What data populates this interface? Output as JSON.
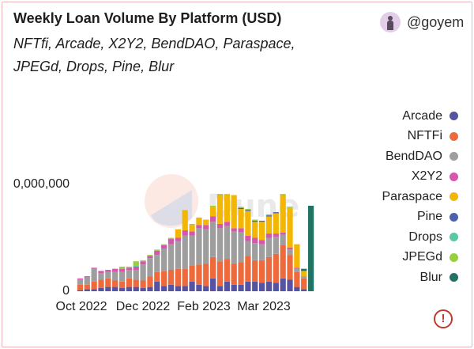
{
  "header": {
    "title": "Weekly Loan Volume By Platform (USD)",
    "subtitle": "NFTfi, Arcade, X2Y2, BendDAO, Paraspace, JPEGd, Drops, Pine, Blur",
    "author": "@goyem"
  },
  "watermark": "Dune",
  "icons": {
    "warning": "exclamation-circle-icon"
  },
  "chart_data": {
    "type": "bar",
    "stacked": true,
    "x_tick_labels": [
      "Oct 2022",
      "Dec 2022",
      "Feb 2023",
      "Mar 2023"
    ],
    "y_tick_labels": [
      "0",
      "‌0,000,000"
    ],
    "ylim": [
      0,
      1
    ],
    "legend_position": "right",
    "series": [
      {
        "name": "Arcade",
        "color": "#5654a2",
        "values": [
          0.01,
          0.02,
          0.02,
          0.03,
          0.04,
          0.04,
          0.03,
          0.04,
          0.04,
          0.03,
          0.04,
          0.09,
          0.05,
          0.06,
          0.05,
          0.05,
          0.09,
          0.06,
          0.05,
          0.12,
          0.05,
          0.09,
          0.06,
          0.06,
          0.09,
          0.09,
          0.08,
          0.09,
          0.08,
          0.12,
          0.11,
          0.04,
          0.02,
          0
        ]
      },
      {
        "name": "NFTFi",
        "color": "#ee6a3c",
        "values": [
          0.05,
          0.04,
          0.07,
          0.08,
          0.08,
          0.06,
          0.06,
          0.08,
          0.07,
          0.07,
          0.1,
          0.09,
          0.14,
          0.14,
          0.16,
          0.16,
          0.15,
          0.19,
          0.21,
          0.2,
          0.23,
          0.21,
          0.2,
          0.21,
          0.24,
          0.2,
          0.21,
          0.23,
          0.27,
          0.31,
          0.23,
          0.14,
          0.1,
          0
        ]
      },
      {
        "name": "BendDAO",
        "color": "#9e9e9e",
        "values": [
          0.05,
          0.07,
          0.12,
          0.06,
          0.06,
          0.08,
          0.09,
          0.08,
          0.09,
          0.15,
          0.17,
          0.16,
          0.21,
          0.24,
          0.26,
          0.31,
          0.28,
          0.34,
          0.32,
          0.33,
          0.31,
          0.31,
          0.3,
          0.28,
          0.14,
          0.16,
          0.15,
          0.18,
          0.16,
          0.1,
          0.05,
          0.03,
          0.02,
          0
        ]
      },
      {
        "name": "X2Y2",
        "color": "#d755ae",
        "values": [
          0.01,
          0.01,
          0.01,
          0.02,
          0.02,
          0.03,
          0.03,
          0.02,
          0.03,
          0.03,
          0.02,
          0.04,
          0.03,
          0.05,
          0.03,
          0.05,
          0.04,
          0.03,
          0.04,
          0.05,
          0.04,
          0.04,
          0.03,
          0.04,
          0.05,
          0.05,
          0.04,
          0.04,
          0.03,
          0.02,
          0.02,
          0.01,
          0,
          0
        ]
      },
      {
        "name": "Paraspace",
        "color": "#f3b703",
        "values": [
          0,
          0,
          0,
          0,
          0,
          0,
          0,
          0,
          0,
          0,
          0,
          0,
          0,
          0,
          0.08,
          0.19,
          0.06,
          0.07,
          0.05,
          0.09,
          0.27,
          0.26,
          0.31,
          0.18,
          0.23,
          0.15,
          0.17,
          0.16,
          0.19,
          0.35,
          0.37,
          0.22,
          0.05,
          0
        ]
      },
      {
        "name": "Pine",
        "color": "#4a63b0",
        "values": [
          0,
          0,
          0,
          0,
          0,
          0,
          0,
          0,
          0,
          0,
          0,
          0,
          0,
          0,
          0,
          0,
          0,
          0,
          0,
          0,
          0,
          0,
          0,
          0.01,
          0.01,
          0.01,
          0.01,
          0.01,
          0.01,
          0,
          0,
          0,
          0,
          0
        ]
      },
      {
        "name": "Drops",
        "color": "#5cc7a3",
        "values": [
          0,
          0,
          0,
          0,
          0,
          0,
          0,
          0,
          0.01,
          0,
          0,
          0,
          0,
          0,
          0,
          0,
          0,
          0,
          0,
          0,
          0,
          0,
          0,
          0,
          0,
          0,
          0,
          0,
          0,
          0,
          0,
          0,
          0,
          0
        ]
      },
      {
        "name": "JPEGd",
        "color": "#98cf3f",
        "values": [
          0,
          0,
          0,
          0,
          0,
          0,
          0.02,
          0.01,
          0.04,
          0.01,
          0.01,
          0.01,
          0.01,
          0.01,
          0,
          0,
          0.01,
          0,
          0,
          0.01,
          0.01,
          0,
          0,
          0.01,
          0.01,
          0.01,
          0,
          0.01,
          0,
          0.01,
          0.01,
          0,
          0,
          0
        ]
      },
      {
        "name": "Blur",
        "color": "#227364",
        "values": [
          0,
          0,
          0,
          0,
          0,
          0,
          0,
          0,
          0,
          0,
          0,
          0,
          0,
          0,
          0,
          0,
          0,
          0,
          0,
          0,
          0,
          0,
          0,
          0,
          0,
          0,
          0,
          0,
          0,
          0,
          0,
          0,
          0.02,
          0.8
        ]
      }
    ]
  }
}
